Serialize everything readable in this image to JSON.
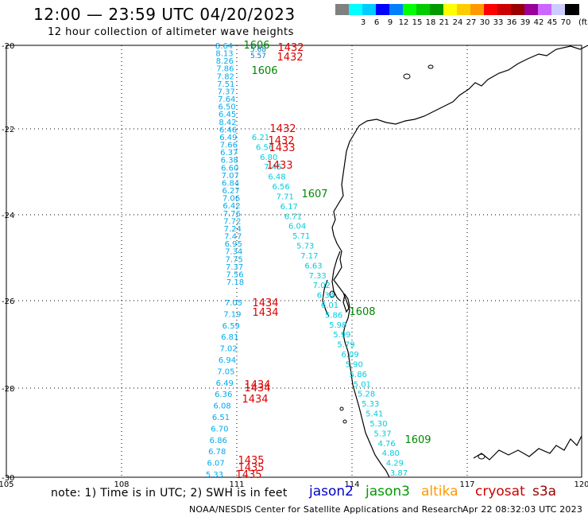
{
  "title": "12:00  —  23:59 UTC 04/20/2023",
  "subtitle": "12 hour collection of altimeter wave heights",
  "scale": {
    "unit": "(ft)",
    "colors": [
      "#808080",
      "#00ffff",
      "#00ccff",
      "#0000ff",
      "#0080ff",
      "#00ff00",
      "#00cc00",
      "#009900",
      "#ffff00",
      "#ffcc00",
      "#ff9900",
      "#ff0000",
      "#cc0000",
      "#990000",
      "#990099",
      "#cc66ff",
      "#ccccff",
      "#000000"
    ],
    "labels": [
      "",
      "3",
      "6",
      "9",
      "12",
      "15",
      "18",
      "21",
      "24",
      "27",
      "30",
      "33",
      "36",
      "39",
      "42",
      "45",
      "70",
      ""
    ]
  },
  "map": {
    "lat_labels": [
      "-20",
      "-22",
      "-24",
      "-26",
      "-28",
      "-30"
    ],
    "lon_labels": [
      "105",
      "108",
      "111",
      "114",
      "117",
      "120"
    ]
  },
  "tracks": {
    "jason3_left_top": {
      "values": [
        "8.64",
        "8.13",
        "8.26",
        "7.86",
        "7.82",
        "7.51",
        "7.37",
        "7.64",
        "6.50",
        "6.45",
        "8.42",
        "6.46",
        "6.49",
        "7.66",
        "6.37",
        "6.38",
        "6.60",
        "7.07",
        "6.84",
        "6.27",
        "7.06",
        "6.42",
        "7.76",
        "7.72",
        "7.24",
        "7.47",
        "6.95",
        "7.34",
        "7.75",
        "7.37",
        "7.56",
        "7.18"
      ],
      "color": "#00aaee"
    },
    "jason3_left_bottom": {
      "values": [
        "7.05",
        "7.19",
        "6.59",
        "6.81",
        "7.02",
        "6.94",
        "7.05",
        "6.49",
        "6.36",
        "6.08",
        "6.51",
        "6.70",
        "6.86",
        "6.78",
        "6.07",
        "5.33"
      ],
      "color": "#00aaee"
    },
    "jason3_diag": {
      "values": [
        "6.21",
        "6.56",
        "6.80",
        "7.45",
        "6.48",
        "6.56",
        "7.71",
        "6.17",
        "6.71",
        "6.04",
        "5.71",
        "5.73",
        "7.17",
        "6.63",
        "7.33",
        "7.02",
        "6.34",
        "6.01",
        "5.86",
        "5.98",
        "5.99",
        "5.79",
        "6.09",
        "5.90",
        "5.86",
        "5.01",
        "5.28",
        "5.33",
        "5.41",
        "5.30",
        "5.37",
        "4.76",
        "4.80",
        "4.29",
        "3.87"
      ],
      "color": "#00ccdd"
    },
    "times_red": [
      "1432",
      "1432",
      "1432",
      "1432",
      "1433",
      "1433",
      "1434",
      "1434",
      "1434",
      "1434",
      "1434",
      "1435",
      "1435",
      "1435"
    ],
    "times_green": [
      "1606",
      "1606",
      "1607",
      "1608",
      "1609"
    ],
    "green_small": [
      "5.68",
      "5.57"
    ]
  },
  "legend": {
    "note": "note:  1) Time is in UTC;  2) SWH is in feet",
    "items": [
      {
        "name": "jason2",
        "color": "#0000cc"
      },
      {
        "name": "jason3",
        "color": "#009900"
      },
      {
        "name": "altika",
        "color": "#ff9900"
      },
      {
        "name": "cryosat",
        "color": "#cc0000"
      },
      {
        "name": "s3a",
        "color": "#990000"
      }
    ],
    "credit": "NOAA/NESDIS Center for Satellite Applications and Research",
    "date": "Apr 22 08:32:03 UTC 2023"
  }
}
